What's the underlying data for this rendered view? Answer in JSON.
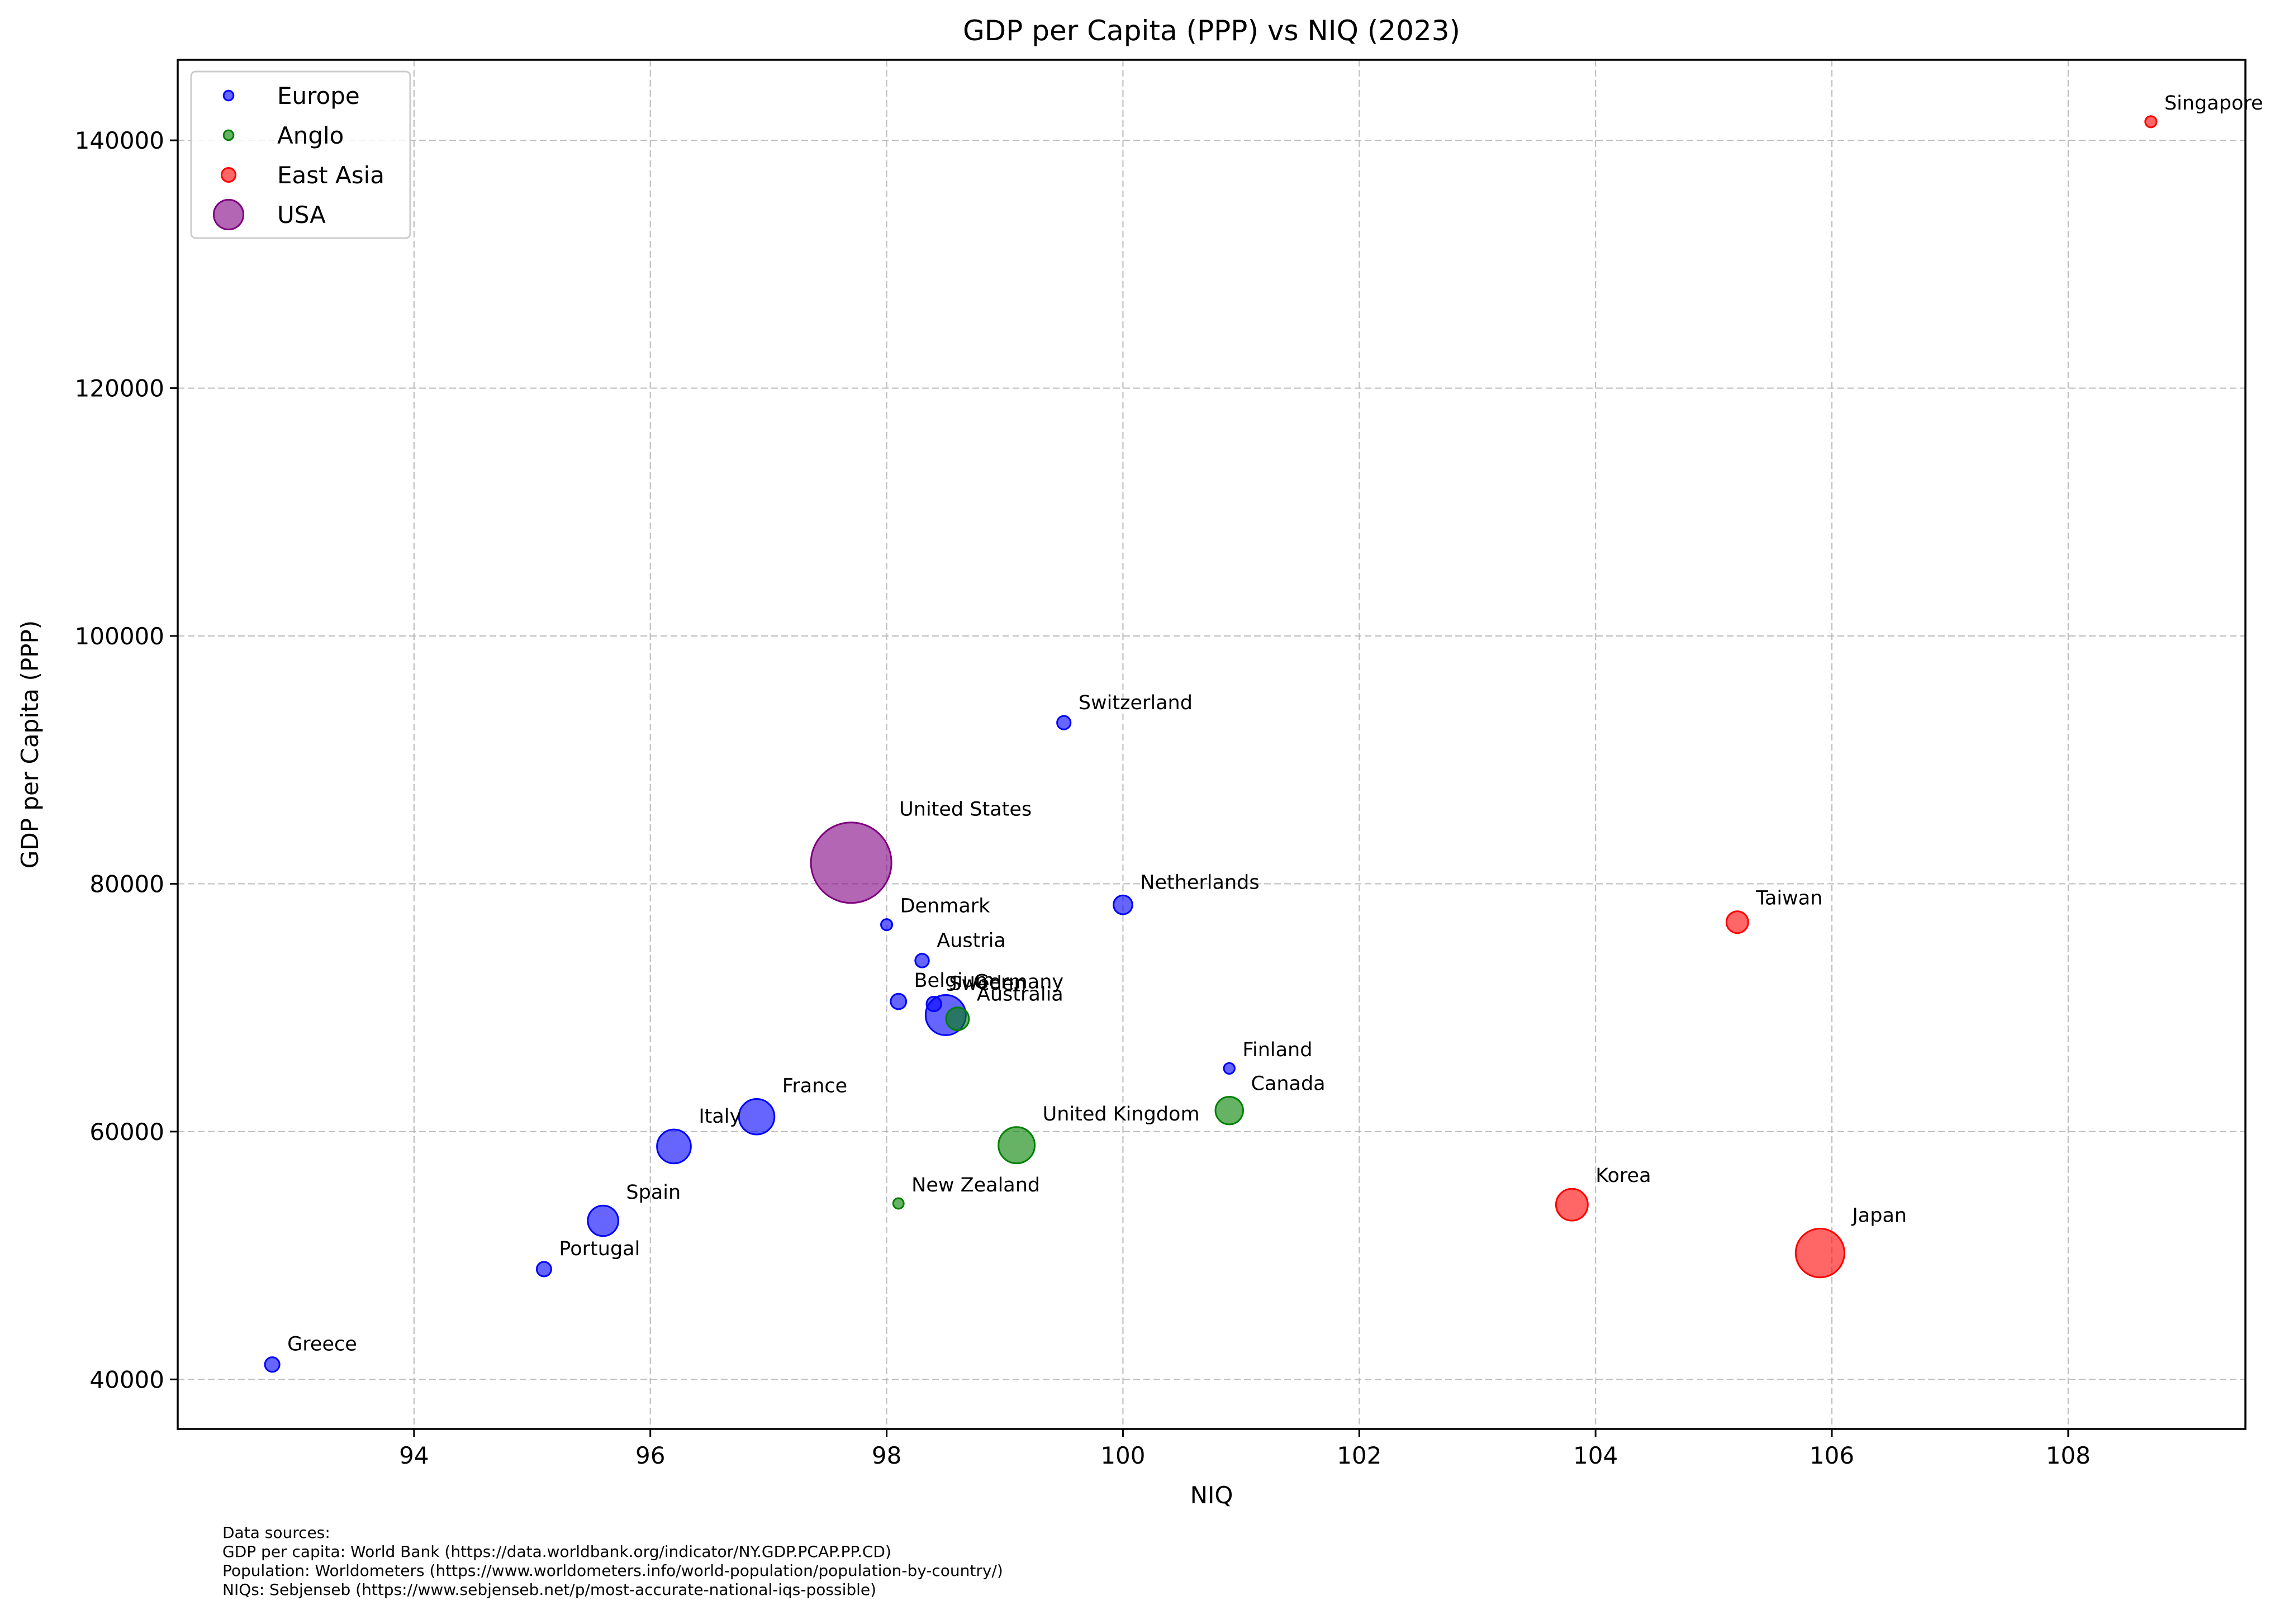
{
  "chart_data": {
    "type": "scatter",
    "title": "GDP per Capita (PPP) vs NIQ (2023)",
    "xlabel": "NIQ",
    "ylabel": "GDP per Capita (PPP)",
    "xlim": [
      92.0,
      109.5
    ],
    "ylim": [
      36000,
      146500
    ],
    "xticks": [
      94,
      96,
      98,
      100,
      102,
      104,
      106,
      108
    ],
    "yticks": [
      40000,
      60000,
      80000,
      100000,
      120000,
      140000
    ],
    "grid": true,
    "grid_style": "dashed",
    "legend_position": "top-left",
    "marker_size_encodes": "population",
    "series": [
      {
        "name": "Europe",
        "color": "#0000ff",
        "points": [
          {
            "label": "Switzerland",
            "x": 99.5,
            "y": 93000,
            "size": 8.8
          },
          {
            "label": "Netherlands",
            "x": 100.0,
            "y": 78300,
            "size": 17.6
          },
          {
            "label": "Denmark",
            "x": 98.0,
            "y": 76700,
            "size": 5.9
          },
          {
            "label": "Austria",
            "x": 98.3,
            "y": 73800,
            "size": 9.0
          },
          {
            "label": "Belgium",
            "x": 98.1,
            "y": 70500,
            "size": 11.7
          },
          {
            "label": "Sweden",
            "x": 98.4,
            "y": 70300,
            "size": 10.5
          },
          {
            "label": "Germany",
            "x": 98.5,
            "y": 69400,
            "size": 83.3
          },
          {
            "label": "Finland",
            "x": 100.9,
            "y": 65100,
            "size": 5.5
          },
          {
            "label": "France",
            "x": 96.9,
            "y": 61200,
            "size": 64.8
          },
          {
            "label": "Italy",
            "x": 96.2,
            "y": 58800,
            "size": 58.9
          },
          {
            "label": "Spain",
            "x": 95.6,
            "y": 52800,
            "size": 47.5
          },
          {
            "label": "Portugal",
            "x": 95.1,
            "y": 48900,
            "size": 10.2
          },
          {
            "label": "Greece",
            "x": 92.8,
            "y": 41200,
            "size": 10.3
          }
        ]
      },
      {
        "name": "Anglo",
        "color": "#008000",
        "points": [
          {
            "label": "Australia",
            "x": 98.6,
            "y": 69100,
            "size": 26.4
          },
          {
            "label": "Canada",
            "x": 100.9,
            "y": 61700,
            "size": 38.8
          },
          {
            "label": "United Kingdom",
            "x": 99.1,
            "y": 58900,
            "size": 67.7
          },
          {
            "label": "New Zealand",
            "x": 98.1,
            "y": 54200,
            "size": 5.2
          }
        ]
      },
      {
        "name": "East Asia",
        "color": "#ff0000",
        "points": [
          {
            "label": "Singapore",
            "x": 108.7,
            "y": 141500,
            "size": 6.0
          },
          {
            "label": "Taiwan",
            "x": 105.2,
            "y": 76900,
            "size": 23.9
          },
          {
            "label": "Korea",
            "x": 103.8,
            "y": 54100,
            "size": 51.7
          },
          {
            "label": "Japan",
            "x": 105.9,
            "y": 50200,
            "size": 123.3
          }
        ]
      },
      {
        "name": "USA",
        "color": "#800080",
        "points": [
          {
            "label": "United States",
            "x": 97.7,
            "y": 81700,
            "size": 339.9
          }
        ]
      }
    ]
  },
  "footer": {
    "sources": [
      "Data sources:",
      "GDP per capita: World Bank (https://data.worldbank.org/indicator/NY.GDP.PCAP.PP.CD)",
      "Population: Worldometers (https://www.worldometers.info/world-population/population-by-country/)",
      "NIQs: Sebjenseb (https://www.sebjenseb.net/p/most-accurate-national-iqs-possible)"
    ]
  }
}
